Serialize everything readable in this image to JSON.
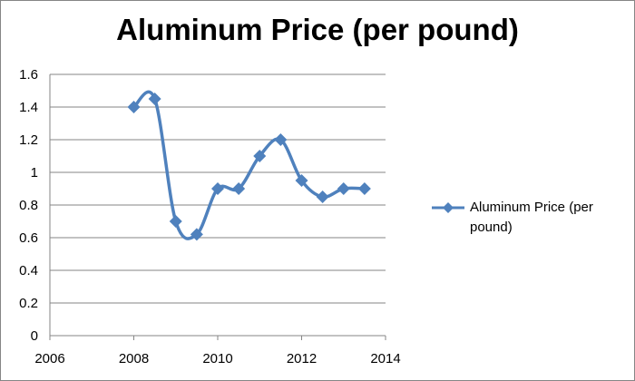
{
  "chart_data": {
    "type": "line",
    "title": "Aluminum Price (per pound)",
    "series": [
      {
        "name": "Aluminum Price (per pound)",
        "color": "#4f81bd",
        "marker": "diamond",
        "smooth": true,
        "points": [
          {
            "x": 2008.0,
            "y": 1.4
          },
          {
            "x": 2008.5,
            "y": 1.45
          },
          {
            "x": 2009.0,
            "y": 0.7
          },
          {
            "x": 2009.5,
            "y": 0.62
          },
          {
            "x": 2010.0,
            "y": 0.9
          },
          {
            "x": 2010.5,
            "y": 0.9
          },
          {
            "x": 2011.0,
            "y": 1.1
          },
          {
            "x": 2011.5,
            "y": 1.2
          },
          {
            "x": 2012.0,
            "y": 0.95
          },
          {
            "x": 2012.5,
            "y": 0.85
          },
          {
            "x": 2013.0,
            "y": 0.9
          },
          {
            "x": 2013.5,
            "y": 0.9
          }
        ]
      }
    ],
    "xlim": [
      2006,
      2014
    ],
    "ylim": [
      0,
      1.6
    ],
    "x_ticks": [
      2006,
      2008,
      2010,
      2012,
      2014
    ],
    "y_ticks": [
      0,
      0.2,
      0.4,
      0.6,
      0.8,
      1,
      1.2,
      1.4,
      1.6
    ],
    "x_tick_labels": [
      "2006",
      "2008",
      "2010",
      "2012",
      "2014"
    ],
    "y_tick_labels": [
      "0",
      "0.2",
      "0.4",
      "0.6",
      "0.8",
      "1",
      "1.2",
      "1.4",
      "1.6"
    ],
    "grid": "horizontal",
    "legend_position": "right",
    "legend": [
      "Aluminum Price (per pound)"
    ]
  }
}
